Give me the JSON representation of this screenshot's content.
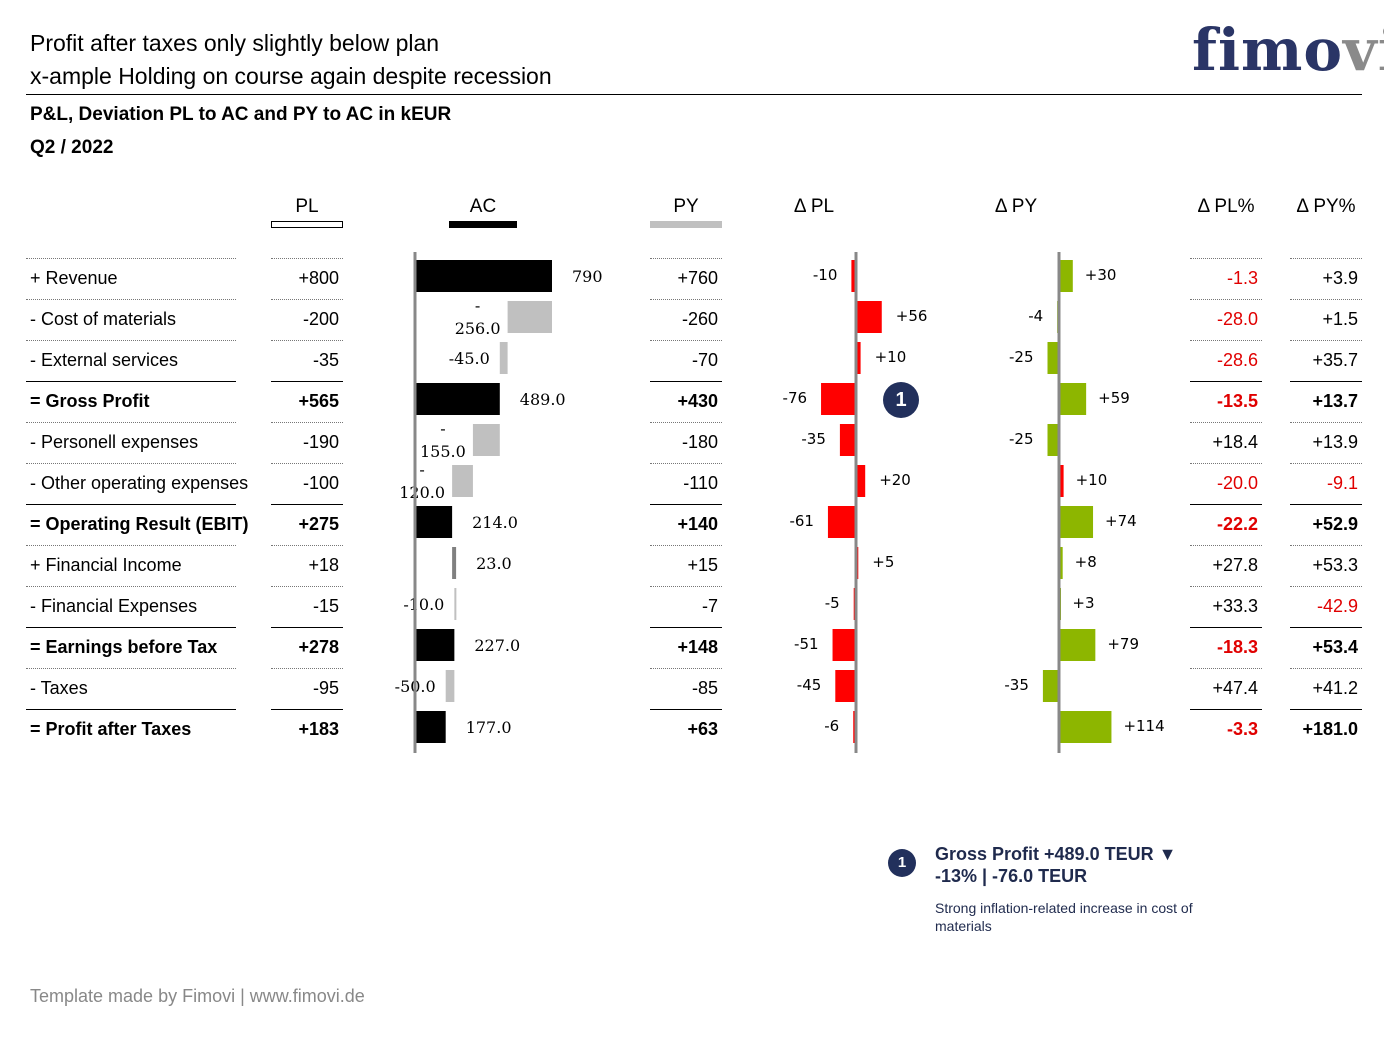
{
  "header": {
    "title_line1": "Profit after taxes only slightly below plan",
    "title_line2": "x-ample Holding on course again despite recession",
    "subtitle": "P&L, Deviation PL to AC and PY to AC in kEUR",
    "period": "Q2 / 2022",
    "logo_main": "fimo",
    "logo_accent": "vi"
  },
  "columns": {
    "pl": "PL",
    "ac": "AC",
    "py": "PY",
    "dpl": "Δ PL",
    "dpy": "Δ PY",
    "dplp": "Δ PL%",
    "dpyp": "Δ PY%"
  },
  "colors": {
    "ac": "#000000",
    "ac_negative": "#c0c0c0",
    "py_marker": "#c0c0c0",
    "positive": "#8db600",
    "negative": "#ff0000",
    "badge": "#22305c"
  },
  "chart_data": {
    "type": "table",
    "rows": [
      {
        "label": "+ Revenue",
        "bold": false,
        "pl": "+800",
        "ac": 790,
        "ac_label": "790",
        "py": "+760",
        "dpl": -10,
        "dpl_label": "-10",
        "dpy": 30,
        "dpy_label": "+30",
        "dplp": "-1.3",
        "dpyp": "+3.9",
        "total": true
      },
      {
        "label": "- Cost of materials",
        "bold": false,
        "pl": "-200",
        "ac": -256,
        "ac_label": "-\n256.0",
        "py": "-260",
        "dpl": 56,
        "dpl_label": "+56",
        "dpy": -4,
        "dpy_label": "-4",
        "dplp": "-28.0",
        "dpyp": "+1.5",
        "total": false
      },
      {
        "label": "- External services",
        "bold": false,
        "pl": "-35",
        "ac": -45,
        "ac_label": "-45.0",
        "py": "-70",
        "dpl": 10,
        "dpl_label": "+10",
        "dpy": -25,
        "dpy_label": "-25",
        "dplp": "-28.6",
        "dpyp": "+35.7",
        "total": false
      },
      {
        "label": "= Gross Profit",
        "bold": true,
        "pl": "+565",
        "ac": 489,
        "ac_label": "489.0",
        "py": "+430",
        "dpl": -76,
        "dpl_label": "-76",
        "dpy": 59,
        "dpy_label": "+59",
        "dplp": "-13.5",
        "dpyp": "+13.7",
        "total": true
      },
      {
        "label": "- Personell expenses",
        "bold": false,
        "pl": "-190",
        "ac": -155,
        "ac_label": "-\n155.0",
        "py": "-180",
        "dpl": -35,
        "dpl_label": "-35",
        "dpy": -25,
        "dpy_label": "-25",
        "dplp": "+18.4",
        "dpyp": "+13.9",
        "total": false
      },
      {
        "label": "- Other operating expenses",
        "bold": false,
        "pl": "-100",
        "ac": -120,
        "ac_label": "-\n120.0",
        "py": "-110",
        "dpl": 20,
        "dpl_label": "+20",
        "dpy": 10,
        "dpy_label": "+10",
        "dplp": "-20.0",
        "dpyp": "-9.1",
        "total": false
      },
      {
        "label": "= Operating Result (EBIT)",
        "bold": true,
        "pl": "+275",
        "ac": 214,
        "ac_label": "214.0",
        "py": "+140",
        "dpl": -61,
        "dpl_label": "-61",
        "dpy": 74,
        "dpy_label": "+74",
        "dplp": "-22.2",
        "dpyp": "+52.9",
        "total": true
      },
      {
        "label": "+ Financial Income",
        "bold": false,
        "pl": "+18",
        "ac": 23,
        "ac_label": "23.0",
        "py": "+15",
        "dpl": 5,
        "dpl_label": "+5",
        "dpy": 8,
        "dpy_label": "+8",
        "dplp": "+27.8",
        "dpyp": "+53.3",
        "total": false
      },
      {
        "label": "- Financial Expenses",
        "bold": false,
        "pl": "-15",
        "ac": -10,
        "ac_label": "-10.0",
        "py": "-7",
        "dpl": -5,
        "dpl_label": "-5",
        "dpy": 3,
        "dpy_label": "+3",
        "dplp": "+33.3",
        "dpyp": "-42.9",
        "total": false
      },
      {
        "label": "= Earnings before Tax",
        "bold": true,
        "pl": "+278",
        "ac": 227,
        "ac_label": "227.0",
        "py": "+148",
        "dpl": -51,
        "dpl_label": "-51",
        "dpy": 79,
        "dpy_label": "+79",
        "dplp": "-18.3",
        "dpyp": "+53.4",
        "total": true
      },
      {
        "label": "- Taxes",
        "bold": false,
        "pl": "-95",
        "ac": -50,
        "ac_label": "-50.0",
        "py": "-85",
        "dpl": -45,
        "dpl_label": "-45",
        "dpy": -35,
        "dpy_label": "-35",
        "dplp": "+47.4",
        "dpyp": "+41.2",
        "total": false
      },
      {
        "label": "= Profit after Taxes",
        "bold": true,
        "pl": "+183",
        "ac": 177,
        "ac_label": "177.0",
        "py": "+63",
        "dpl": -6,
        "dpl_label": "-6",
        "dpy": 114,
        "dpy_label": "+114",
        "dplp": "-3.3",
        "dpyp": "+181.0",
        "total": true
      }
    ]
  },
  "note": {
    "badge": "1",
    "title_line1": "Gross Profit +489.0 TEUR ▼",
    "title_line2": "-13% | -76.0 TEUR",
    "body": "Strong inflation-related increase in cost of materials"
  },
  "footer": "Template made by Fimovi  |  www.fimovi.de"
}
